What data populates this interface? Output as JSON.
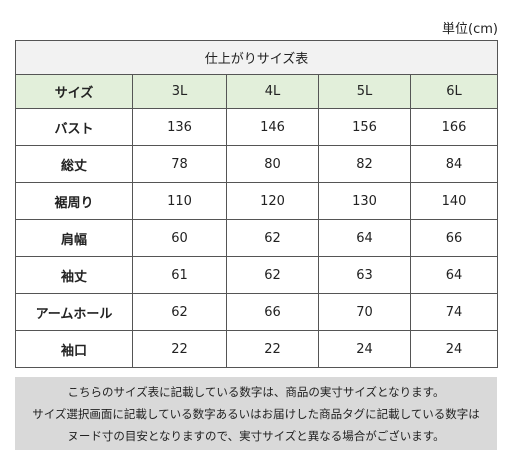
{
  "unit": "単位(cm)",
  "table": {
    "title": "仕上がりサイズ表",
    "header": [
      "サイズ",
      "3L",
      "4L",
      "5L",
      "6L"
    ],
    "rows": [
      [
        "バスト",
        136,
        146,
        156,
        166
      ],
      [
        "総丈",
        78,
        80,
        82,
        84
      ],
      [
        "裾周り",
        110,
        120,
        130,
        140
      ],
      [
        "肩幅",
        60,
        62,
        64,
        66
      ],
      [
        "袖丈",
        61,
        62,
        63,
        64
      ],
      [
        "アームホール",
        62,
        66,
        70,
        74
      ],
      [
        "袖口",
        22,
        22,
        24,
        24
      ]
    ]
  },
  "note": [
    "こちらのサイズ表に記載している数字は、商品の実寸サイズとなります。",
    "サイズ選択画面に記載している数字あるいはお届けした商品タグに記載している数字は",
    "ヌード寸の目安となりますので、実寸サイズと異なる場合がございます。"
  ]
}
